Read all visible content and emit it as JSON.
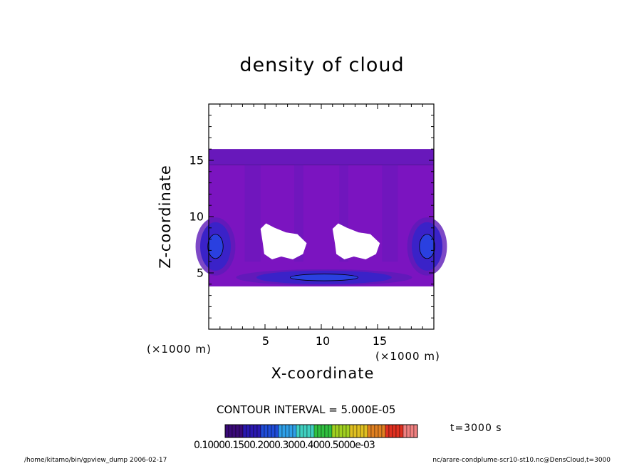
{
  "title": "density of cloud",
  "xlabel": "X-coordinate",
  "ylabel": "Z-coordinate",
  "x_scale": "(×1000 m)",
  "x_scale_right": "(×1000 m)",
  "contour_interval": "CONTOUR INTERVAL = 5.000E-05",
  "time": "t=3000 s",
  "colorbar_ticks": "0.10000.1500.2000.3000.4000.5000e-03",
  "footer_left": "/home/kitamo/bin/gpview_dump  2006-02-17",
  "footer_right": "nc/arare-condplume-scr10-st10.nc@DensCloud,t=3000",
  "chart_data": {
    "type": "heatmap",
    "title": "density of cloud",
    "xlabel": "X-coordinate",
    "ylabel": "Z-coordinate",
    "xlim": [
      0,
      20
    ],
    "ylim": [
      0,
      20
    ],
    "xticks": [
      "5",
      "10",
      "15"
    ],
    "yticks": [
      "5",
      "10",
      "15"
    ],
    "x_tick_values": [
      5,
      10,
      15
    ],
    "y_tick_values": [
      5,
      10,
      15
    ],
    "cloud_layer_z_range": [
      3.8,
      16
    ],
    "clear_regions": [
      {
        "name": "left gap",
        "x_range": [
          4.6,
          8.7
        ],
        "z_range": [
          6.2,
          9.4
        ]
      },
      {
        "name": "right gap",
        "x_range": [
          11.0,
          15.2
        ],
        "z_range": [
          6.2,
          9.4
        ]
      }
    ],
    "dense_regions": [
      {
        "name": "left edge core",
        "x_range": [
          0,
          1.2
        ],
        "z_range": [
          5.2,
          9.5
        ]
      },
      {
        "name": "right edge core",
        "x_range": [
          18.8,
          20
        ],
        "z_range": [
          5.2,
          9.5
        ]
      },
      {
        "name": "lower band",
        "x_range": [
          5,
          15.5
        ],
        "z_range": [
          4.0,
          5.2
        ]
      }
    ],
    "colorbar_colors": [
      "#3a0a78",
      "#2a18b0",
      "#1f4cd8",
      "#2fa0e8",
      "#40d0c0",
      "#30c040",
      "#a0d020",
      "#e0c020",
      "#e08020",
      "#e03020",
      "#f08080"
    ],
    "colors": {
      "main": "#7b14c0",
      "mid": "#5c1ab8",
      "dark": "#3a22c8",
      "core": "#2a40e0"
    }
  }
}
